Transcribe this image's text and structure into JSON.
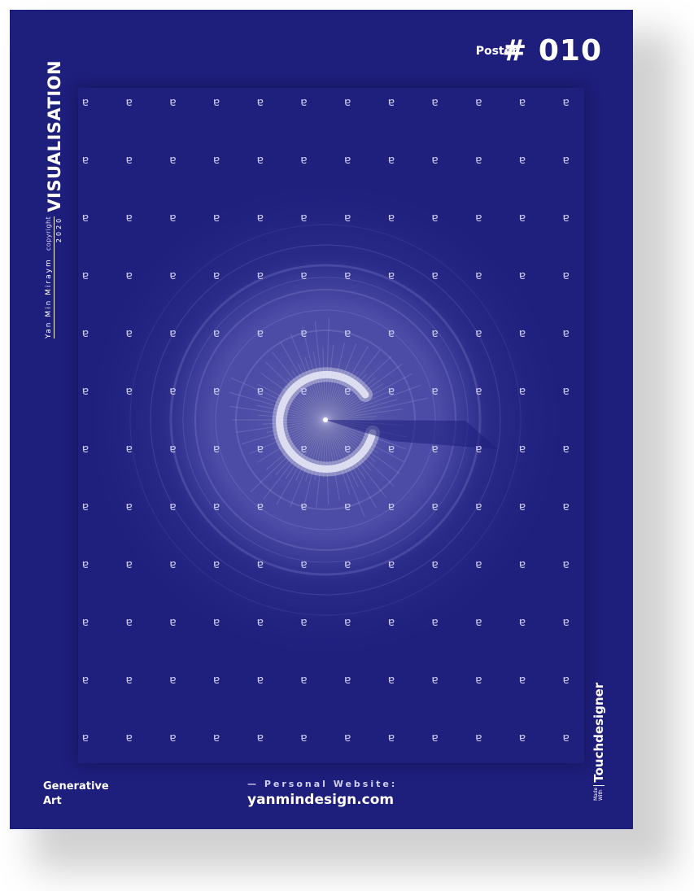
{
  "poster": {
    "label": "Poster",
    "number": "# 010",
    "title": "VISUALISATION",
    "author": "Yan Min Miraym",
    "copyright": "copyright",
    "year": "2020",
    "genre_line1": "Generative",
    "genre_line2": "Art",
    "website_caption": "— Personal Website:",
    "website_url": "yanmindesign.com",
    "made_with_line1": "Made",
    "made_with_line2": "With",
    "tool": "Touchdesigner",
    "glyph": "ɐ"
  },
  "colors": {
    "background": "#1e1e7c",
    "accent": "#ffffff",
    "glyph": "#c9c9f0"
  }
}
